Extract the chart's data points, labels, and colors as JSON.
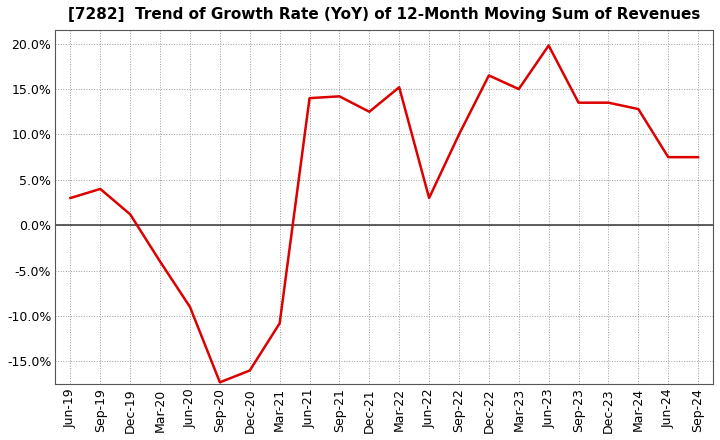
{
  "title": "[7282]  Trend of Growth Rate (YoY) of 12-Month Moving Sum of Revenues",
  "line_color": "#DD0000",
  "background_color": "#ffffff",
  "plot_bg_color": "#ffffff",
  "grid_color": "#999999",
  "ylim": [
    -0.175,
    0.215
  ],
  "yticks": [
    -0.15,
    -0.1,
    -0.05,
    0.0,
    0.05,
    0.1,
    0.15,
    0.2
  ],
  "labels": [
    "Jun-19",
    "Sep-19",
    "Dec-19",
    "Mar-20",
    "Jun-20",
    "Sep-20",
    "Dec-20",
    "Mar-21",
    "Jun-21",
    "Sep-21",
    "Dec-21",
    "Mar-22",
    "Jun-22",
    "Sep-22",
    "Dec-22",
    "Mar-23",
    "Jun-23",
    "Sep-23",
    "Dec-23",
    "Mar-24",
    "Jun-24",
    "Sep-24"
  ],
  "values": [
    0.03,
    0.04,
    0.012,
    -0.04,
    -0.09,
    -0.173,
    -0.16,
    -0.108,
    0.14,
    0.142,
    0.125,
    0.152,
    0.03,
    0.1,
    0.165,
    0.15,
    0.198,
    0.135,
    0.135,
    0.128,
    0.075,
    0.075
  ],
  "title_fontsize": 11,
  "tick_fontsize": 9,
  "linewidth": 1.8
}
